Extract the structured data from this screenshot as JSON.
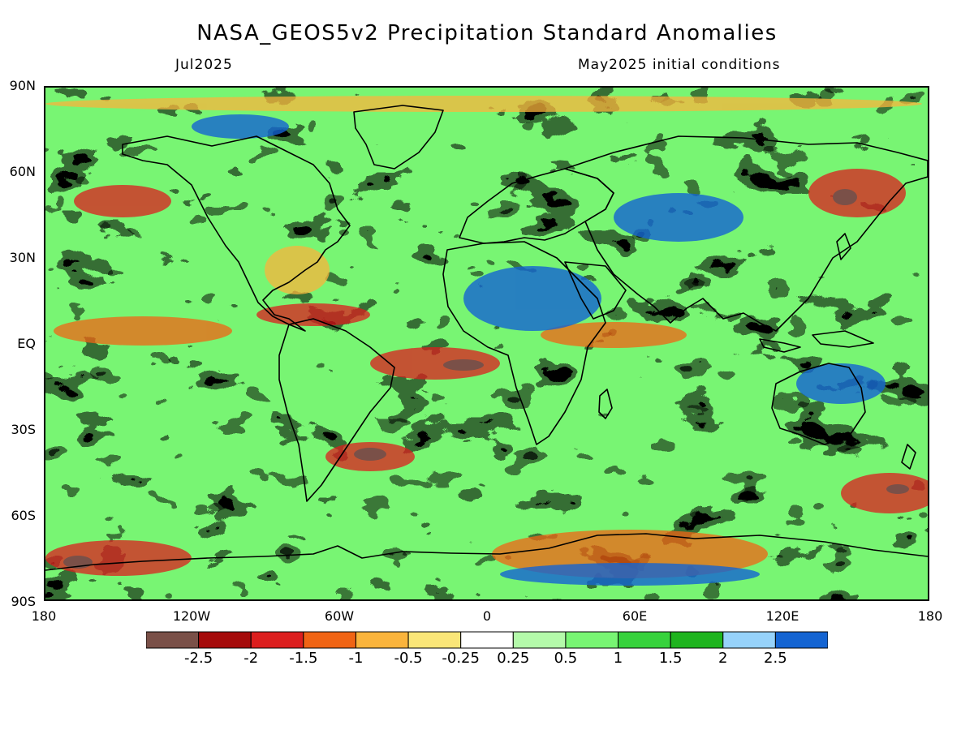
{
  "title": "NASA_GEOS5v2 Precipitation Standard Anomalies",
  "valid_month": "Jul2025",
  "init_conditions": "May2025 initial conditions",
  "lat_labels": [
    "90N",
    "60N",
    "30N",
    "EQ",
    "30S",
    "60S",
    "90S"
  ],
  "lon_labels": [
    "180",
    "120W",
    "60W",
    "0",
    "60E",
    "120E",
    "180"
  ],
  "colorbar": {
    "colors": [
      "#7a5048",
      "#a50a0a",
      "#dc1e1e",
      "#f06414",
      "#fab43c",
      "#fae678",
      "#ffffff",
      "#b4faaa",
      "#78f573",
      "#37d23c",
      "#1eb41e",
      "#96d2fa",
      "#1464d2"
    ],
    "labels": [
      "-2.5",
      "-2",
      "-1.5",
      "-1",
      "-0.5",
      "-0.25",
      "0.25",
      "0.5",
      "1",
      "1.5",
      "2",
      "2.5"
    ]
  },
  "icons": {
    "map": "world-map-coastlines"
  }
}
